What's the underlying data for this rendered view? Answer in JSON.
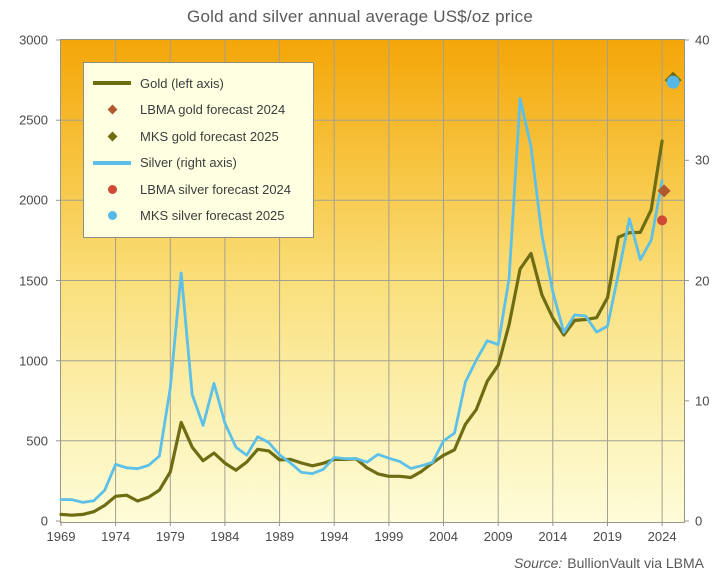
{
  "title": "Gold and silver annual average US$/oz price",
  "source": {
    "prefix": "Source:",
    "text": "BullionVault via LBMA"
  },
  "legend": {
    "items": [
      {
        "label": "Gold (left axis)",
        "marker": "line-gold"
      },
      {
        "label": "LBMA gold forecast 2024",
        "marker": "diamond-brown"
      },
      {
        "label": "MKS gold forecast 2025",
        "marker": "diamond-olive"
      },
      {
        "label": "Silver (right axis)",
        "marker": "line-silver"
      },
      {
        "label": "LBMA silver forecast 2024",
        "marker": "circle-red"
      },
      {
        "label": "MKS silver forecast 2025",
        "marker": "circle-blue"
      }
    ]
  },
  "colors": {
    "gold": "#6e6d13",
    "silver": "#5cc0e8",
    "lbma_gold": "#b0592f",
    "lbma_silver": "#cf4a35",
    "mks_gold": "#6e6d13",
    "mks_silver": "#55b8e6",
    "grid": "#a3a193",
    "plot_border": "#97968a",
    "axis_text": "#4a4a4a",
    "title_text": "#595959",
    "legend_bg": "#ffffe2",
    "bg_gradient": [
      "#f4a608",
      "#f7c33e",
      "#fadf7a",
      "#fcf0ae",
      "#fefcd8"
    ]
  },
  "axes": {
    "left": {
      "ticks": [
        0,
        500,
        1000,
        1500,
        2000,
        2500,
        3000
      ],
      "max": 3000
    },
    "right": {
      "ticks": [
        0,
        10,
        20,
        30,
        40
      ],
      "max": 40
    },
    "x": {
      "tick_years": [
        1969,
        1974,
        1979,
        1984,
        1989,
        1994,
        1999,
        2004,
        2009,
        2014,
        2019,
        2024
      ]
    }
  },
  "chart_data": {
    "type": "line",
    "title": "Gold and silver annual average US$/oz price",
    "xlim": [
      1969,
      2026
    ],
    "ylim_left": [
      0,
      3000
    ],
    "ylim_right": [
      0,
      40
    ],
    "grid": true,
    "legend_position": "top-left",
    "years": [
      1969,
      1970,
      1971,
      1972,
      1973,
      1974,
      1975,
      1976,
      1977,
      1978,
      1979,
      1980,
      1981,
      1982,
      1983,
      1984,
      1985,
      1986,
      1987,
      1988,
      1989,
      1990,
      1991,
      1992,
      1993,
      1994,
      1995,
      1996,
      1997,
      1998,
      1999,
      2000,
      2001,
      2002,
      2003,
      2004,
      2005,
      2006,
      2007,
      2008,
      2009,
      2010,
      2011,
      2012,
      2013,
      2014,
      2015,
      2016,
      2017,
      2018,
      2019,
      2020,
      2021,
      2022,
      2023,
      2024
    ],
    "series": [
      {
        "name": "Gold (left axis)",
        "axis": "left",
        "values": [
          41,
          36,
          41,
          58,
          97,
          154,
          161,
          125,
          148,
          193,
          306,
          615,
          460,
          376,
          424,
          361,
          317,
          368,
          447,
          437,
          381,
          384,
          362,
          344,
          360,
          384,
          384,
          388,
          331,
          294,
          279,
          279,
          271,
          310,
          363,
          410,
          444,
          603,
          695,
          872,
          972,
          1225,
          1572,
          1669,
          1411,
          1266,
          1160,
          1251,
          1257,
          1268,
          1393,
          1770,
          1799,
          1800,
          1941,
          2370
        ]
      },
      {
        "name": "Silver (right axis)",
        "axis": "right",
        "values": [
          1.79,
          1.77,
          1.55,
          1.68,
          2.56,
          4.71,
          4.42,
          4.35,
          4.62,
          5.4,
          11.09,
          20.63,
          10.52,
          7.95,
          11.44,
          8.14,
          6.14,
          5.47,
          7.01,
          6.53,
          5.5,
          4.82,
          4.04,
          3.94,
          4.3,
          5.28,
          5.19,
          5.19,
          4.89,
          5.54,
          5.22,
          4.95,
          4.37,
          4.6,
          4.88,
          6.66,
          7.31,
          11.55,
          13.38,
          14.99,
          14.67,
          20.19,
          35.12,
          31.15,
          23.79,
          19.08,
          15.68,
          17.14,
          17.05,
          15.71,
          16.21,
          20.55,
          25.14,
          21.73,
          23.35,
          28.3
        ]
      }
    ],
    "forecasts": [
      {
        "name": "LBMA gold forecast 2024",
        "axis": "left",
        "year": 2024,
        "value": 2059,
        "marker": "diamond",
        "color_key": "lbma_gold"
      },
      {
        "name": "MKS gold forecast 2025",
        "axis": "left",
        "year": 2025,
        "value": 2750,
        "marker": "diamond",
        "color_key": "mks_gold"
      },
      {
        "name": "LBMA silver forecast 2024",
        "axis": "right",
        "year": 2024,
        "value": 25.0,
        "marker": "circle",
        "color_key": "lbma_silver"
      },
      {
        "name": "MKS silver forecast 2025",
        "axis": "right",
        "year": 2025,
        "value": 36.5,
        "marker": "circle",
        "color_key": "mks_silver"
      }
    ]
  }
}
